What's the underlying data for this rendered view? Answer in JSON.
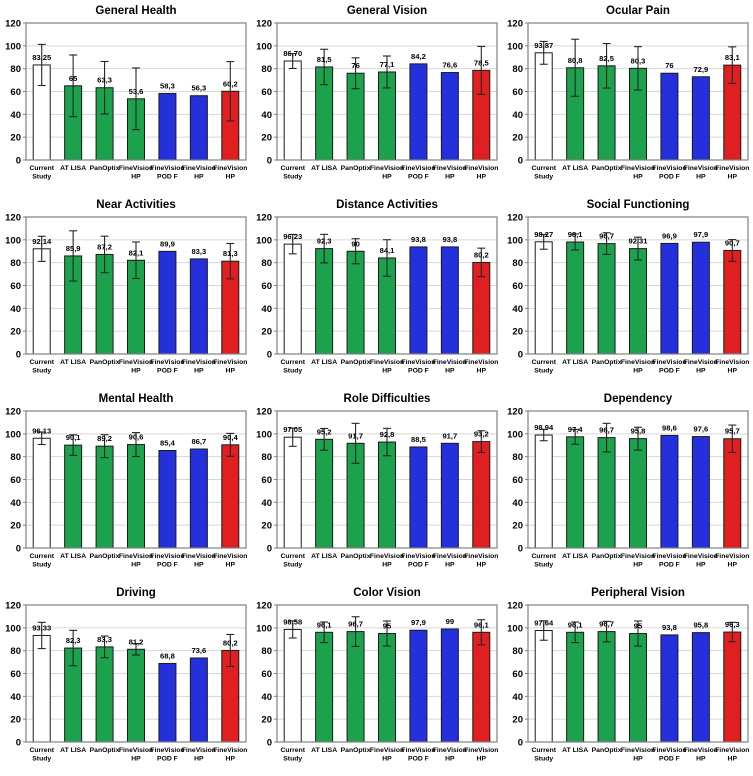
{
  "figure": {
    "description": "Grid of twelve bar charts of questionnaire subscale scores",
    "rows": 4,
    "cols": 3
  },
  "palette": {
    "bar_fill_by_group": [
      "#FFFFFF",
      "#1CA14C",
      "#1CA14C",
      "#1CA14C",
      "#2430DC",
      "#2430DC",
      "#E02020"
    ],
    "bar_border": "#1A1A1A",
    "error_bar": "#262626",
    "grid_line": "#D6D6D6",
    "plot_border": "#808080",
    "text": "#000000",
    "background": "#FFFFFF"
  },
  "axis": {
    "ylim": [
      0,
      120
    ],
    "yticks": [
      0,
      20,
      40,
      60,
      80,
      100,
      120
    ],
    "grid": true
  },
  "category_lines": [
    [
      "Current",
      "Study"
    ],
    [
      "AT LISA"
    ],
    [
      "PanOptix"
    ],
    [
      "FineVision",
      "HP"
    ],
    [
      "FineVision",
      "POD F"
    ],
    [
      "FineVision",
      "HP"
    ],
    [
      "FineVision",
      "HP"
    ]
  ],
  "chart_data": [
    {
      "type": "bar",
      "title": "General Health",
      "categories": [
        "Current Study",
        "AT LISA",
        "PanOptix",
        "FineVision HP",
        "FineVision POD F",
        "FineVision HP",
        "FineVision HP"
      ],
      "values": [
        83.25,
        65,
        63.3,
        53.6,
        58.3,
        56.3,
        60.2
      ],
      "value_labels": [
        "83,25",
        "65",
        "63,3",
        "53,6",
        "58,3",
        "56,3",
        "60,2"
      ],
      "errors": [
        18,
        27,
        23,
        27,
        null,
        null,
        26
      ],
      "ylim": [
        0,
        120
      ]
    },
    {
      "type": "bar",
      "title": "General Vision",
      "categories": [
        "Current Study",
        "AT LISA",
        "PanOptix",
        "FineVision HP",
        "FineVision POD F",
        "FineVision HP",
        "FineVision HP"
      ],
      "values": [
        86.7,
        81.5,
        76,
        77.1,
        84.2,
        76.6,
        78.5
      ],
      "value_labels": [
        "86,70",
        "81,5",
        "76",
        "77,1",
        "84,2",
        "76,6",
        "78,5"
      ],
      "errors": [
        6.5,
        15.5,
        13.5,
        14,
        null,
        null,
        21
      ],
      "ylim": [
        0,
        120
      ]
    },
    {
      "type": "bar",
      "title": "Ocular Pain",
      "categories": [
        "Current Study",
        "AT LISA",
        "PanOptix",
        "FineVision HP",
        "FineVision POD F",
        "FineVision HP",
        "FineVision HP"
      ],
      "values": [
        93.87,
        80.8,
        82.5,
        80.3,
        76,
        72.9,
        83.1
      ],
      "value_labels": [
        "93,87",
        "80,8",
        "82,5",
        "80,3",
        "76",
        "72,9",
        "83,1"
      ],
      "errors": [
        10,
        25,
        19.5,
        19,
        null,
        null,
        16
      ],
      "ylim": [
        0,
        120
      ]
    },
    {
      "type": "bar",
      "title": "Near Activities",
      "categories": [
        "Current Study",
        "AT LISA",
        "PanOptix",
        "FineVision HP",
        "FineVision POD F",
        "FineVision HP",
        "FineVision HP"
      ],
      "values": [
        92.14,
        85.9,
        87.2,
        82.1,
        89.9,
        83.3,
        81.3
      ],
      "value_labels": [
        "92,14",
        "85,9",
        "87,2",
        "82,1",
        "89,9",
        "83,3",
        "81,3"
      ],
      "errors": [
        11,
        22,
        16,
        16,
        null,
        null,
        15.5
      ],
      "ylim": [
        0,
        120
      ]
    },
    {
      "type": "bar",
      "title": "Distance Activities",
      "categories": [
        "Current Study",
        "AT LISA",
        "PanOptix",
        "FineVision HP",
        "FineVision POD F",
        "FineVision HP",
        "FineVision HP"
      ],
      "values": [
        96.23,
        92.3,
        90,
        84.1,
        93.8,
        93.8,
        80.2
      ],
      "value_labels": [
        "96,23",
        "92,3",
        "90",
        "84,1",
        "93,8",
        "93,8",
        "80,2"
      ],
      "errors": [
        8.5,
        12.5,
        11,
        16,
        null,
        null,
        12.5
      ],
      "ylim": [
        0,
        120
      ]
    },
    {
      "type": "bar",
      "title": "Social Functioning",
      "categories": [
        "Current Study",
        "AT LISA",
        "PanOptix",
        "FineVision HP",
        "FineVision POD F",
        "FineVision HP",
        "FineVision HP"
      ],
      "values": [
        98.27,
        98.1,
        96.7,
        92.31,
        96.9,
        97.9,
        90.7
      ],
      "value_labels": [
        "98,27",
        "98,1",
        "96,7",
        "92,31",
        "96,9",
        "97,9",
        "90,7"
      ],
      "errors": [
        6.5,
        7,
        9.5,
        10,
        null,
        null,
        9.5
      ],
      "ylim": [
        0,
        120
      ]
    },
    {
      "type": "bar",
      "title": "Mental Health",
      "categories": [
        "Current Study",
        "AT LISA",
        "PanOptix",
        "FineVision HP",
        "FineVision POD F",
        "FineVision HP",
        "FineVision HP"
      ],
      "values": [
        96.13,
        90.1,
        89.2,
        90.6,
        85.4,
        86.7,
        90.4
      ],
      "value_labels": [
        "96,13",
        "90,1",
        "89,2",
        "90,6",
        "85,4",
        "86,7",
        "90,4"
      ],
      "errors": [
        5.5,
        9,
        10,
        10.5,
        null,
        null,
        10
      ],
      "ylim": [
        0,
        120
      ]
    },
    {
      "type": "bar",
      "title": "Role Difficulties",
      "categories": [
        "Current Study",
        "AT LISA",
        "PanOptix",
        "FineVision HP",
        "FineVision POD F",
        "FineVision HP",
        "FineVision HP"
      ],
      "values": [
        97.05,
        95.2,
        91.7,
        92.8,
        88.5,
        91.7,
        93.2
      ],
      "value_labels": [
        "97,05",
        "95,2",
        "91,7",
        "92,8",
        "88,5",
        "91,7",
        "93,2"
      ],
      "errors": [
        8,
        9.5,
        17.5,
        12,
        null,
        null,
        9.5
      ],
      "ylim": [
        0,
        120
      ]
    },
    {
      "type": "bar",
      "title": "Dependency",
      "categories": [
        "Current Study",
        "AT LISA",
        "PanOptix",
        "FineVision HP",
        "FineVision POD F",
        "FineVision HP",
        "FineVision HP"
      ],
      "values": [
        98.94,
        97.4,
        96.7,
        95.8,
        98.6,
        97.6,
        95.7
      ],
      "value_labels": [
        "98,94",
        "97,4",
        "96,7",
        "95,8",
        "98,6",
        "97,6",
        "95,7"
      ],
      "errors": [
        5,
        6.5,
        12.5,
        10,
        null,
        null,
        12
      ],
      "ylim": [
        0,
        120
      ]
    },
    {
      "type": "bar",
      "title": "Driving",
      "categories": [
        "Current Study",
        "AT LISA",
        "PanOptix",
        "FineVision HP",
        "FineVision POD F",
        "FineVision HP",
        "FineVision HP"
      ],
      "values": [
        93.33,
        82.3,
        83.3,
        81.2,
        68.8,
        73.6,
        80.2
      ],
      "value_labels": [
        "93,33",
        "82,3",
        "83,3",
        "81,2",
        "68,8",
        "73,6",
        "80,2"
      ],
      "errors": [
        11.5,
        15.5,
        9.5,
        5,
        null,
        null,
        14
      ],
      "ylim": [
        0,
        120
      ]
    },
    {
      "type": "bar",
      "title": "Color Vision",
      "categories": [
        "Current Study",
        "AT LISA",
        "PanOptix",
        "FineVision HP",
        "FineVision POD F",
        "FineVision HP",
        "FineVision HP"
      ],
      "values": [
        98.58,
        96.1,
        96.7,
        95,
        97.9,
        99,
        96.1
      ],
      "value_labels": [
        "98,58",
        "96,1",
        "96,7",
        "95",
        "97,9",
        "99",
        "96,1"
      ],
      "errors": [
        7.5,
        9,
        13,
        11,
        null,
        null,
        11
      ],
      "ylim": [
        0,
        120
      ]
    },
    {
      "type": "bar",
      "title": "Peripheral Vision",
      "categories": [
        "Current Study",
        "AT LISA",
        "PanOptix",
        "FineVision HP",
        "FineVision POD F",
        "FineVision HP",
        "FineVision HP"
      ],
      "values": [
        97.64,
        96.1,
        96.7,
        95,
        93.8,
        95.8,
        96.3
      ],
      "value_labels": [
        "97,64",
        "96,1",
        "96,7",
        "95",
        "93,8",
        "95,8",
        "96,3"
      ],
      "errors": [
        8.5,
        9,
        9,
        11,
        null,
        null,
        8.5
      ],
      "ylim": [
        0,
        120
      ]
    }
  ]
}
